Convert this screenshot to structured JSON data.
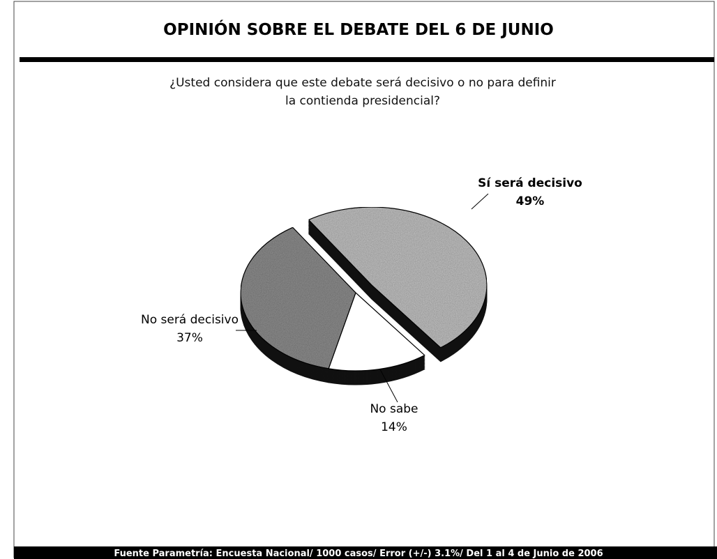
{
  "chart_data": {
    "type": "pie",
    "title": "OPINIÓN SOBRE EL DEBATE DEL 6 DE JUNIO",
    "subtitle": "¿Usted considera que este debate será decisivo o no para definir la contienda presidencial?",
    "categories": [
      "Sí será decisivo",
      "No sabe",
      "No será decisivo"
    ],
    "values": [
      49,
      14,
      37
    ],
    "value_labels": [
      "49%",
      "14%",
      "37%"
    ],
    "colors": [
      "#bdbdbd",
      "#ffffff",
      "#8a8a8a"
    ],
    "source": "Fuente Parametría: Encuesta Nacional/ 1000 casos/ Error (+/-) 3.1%/ Del 1 al 4 de Junio  de 2006"
  }
}
